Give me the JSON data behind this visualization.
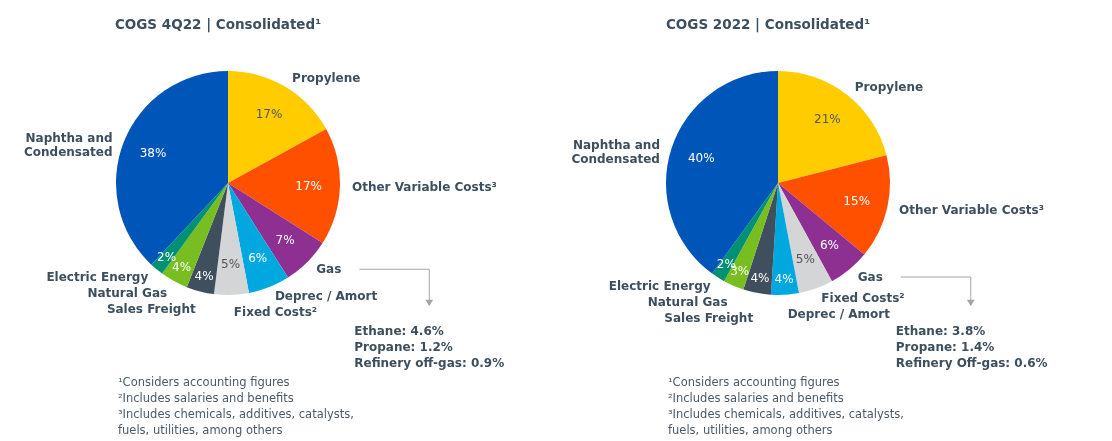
{
  "chart_data": [
    {
      "type": "pie",
      "title": "COGS 4Q22 | Consolidated¹",
      "categories": [
        "Propylene",
        "Other Variable Costs³",
        "Gas",
        "Deprec / Amort",
        "Fixed Costs²",
        "Sales Freight",
        "Natural Gas",
        "Electric Energy",
        "Naphtha and\nCondensated"
      ],
      "values": [
        17,
        17,
        7,
        6,
        5,
        4,
        4,
        2,
        38
      ],
      "value_labels": [
        "17%",
        "17%",
        "7%",
        "6%",
        "5%",
        "4%",
        "4%",
        "2%",
        "38%"
      ],
      "colors": [
        "#ffcc00",
        "#ff5000",
        "#8e3092",
        "#00a8e0",
        "#d4d5d7",
        "#3f4f5e",
        "#78be20",
        "#009174",
        "#0055b8"
      ],
      "annotations": [
        {
          "text": "Ethane: 4.6%",
          "x": "Gas"
        },
        {
          "text": "Propane: 1.2%",
          "x": "Gas"
        },
        {
          "text": "Refinery off-gas: 0.9%",
          "x": "Gas"
        },
        "¹Considers accounting figures",
        "²Includes salaries and benefits",
        "³Includes chemicals, additives, catalysts,",
        "fuels, utilities, among others"
      ]
    },
    {
      "type": "pie",
      "title": "COGS 2022 | Consolidated¹",
      "categories": [
        "Propylene",
        "Other Variable Costs³",
        "Gas",
        "Fixed Costs²",
        "Deprec / Amort",
        "Sales Freight",
        "Natural Gas",
        "Electric Energy",
        "Naphtha and\nCondensated"
      ],
      "values": [
        21,
        15,
        6,
        5,
        4,
        4,
        3,
        2,
        40
      ],
      "value_labels": [
        "21%",
        "15%",
        "6%",
        "5%",
        "4%",
        "4%",
        "3%",
        "2%",
        "40%"
      ],
      "colors": [
        "#ffcc00",
        "#ff5000",
        "#8e3092",
        "#d4d5d7",
        "#00a8e0",
        "#3f4f5e",
        "#78be20",
        "#009174",
        "#0055b8"
      ],
      "annotations": [
        {
          "text": "Ethane: 3.8%",
          "x": "Gas"
        },
        {
          "text": "Propane: 1.4%",
          "x": "Gas"
        },
        {
          "text": "Refinery Off-gas: 0.6%",
          "x": "Gas"
        },
        "¹Considers accounting figures",
        "²Includes salaries and benefits",
        "³Includes chemicals, additives, catalysts,",
        "fuels, utilities, among others"
      ]
    }
  ]
}
